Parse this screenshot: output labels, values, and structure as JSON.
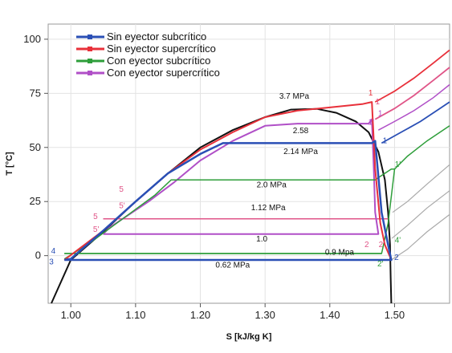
{
  "chart_data": {
    "type": "line",
    "title": "",
    "xlabel": "S [kJ/kg K]",
    "ylabel": "T [°C]",
    "xlim": [
      0.965,
      1.585
    ],
    "ylim": [
      -22,
      107
    ],
    "xticks": [
      {
        "value": 1.0,
        "label": "1.00"
      },
      {
        "value": 1.1,
        "label": "1.10"
      },
      {
        "value": 1.2,
        "label": "1.20"
      },
      {
        "value": 1.3,
        "label": "1.30"
      },
      {
        "value": 1.4,
        "label": "1.40"
      },
      {
        "value": 1.5,
        "label": "1.50"
      }
    ],
    "yticks": [
      {
        "value": 0,
        "label": "0"
      },
      {
        "value": 25,
        "label": "25"
      },
      {
        "value": 50,
        "label": "50"
      },
      {
        "value": 75,
        "label": "75"
      },
      {
        "value": 100,
        "label": "100"
      }
    ],
    "grid": true,
    "legend_position": "top-left",
    "saturation_dome": {
      "color": "#111111",
      "points": [
        [
          0.97,
          -22
        ],
        [
          1.0,
          -2
        ],
        [
          1.05,
          11
        ],
        [
          1.1,
          25
        ],
        [
          1.15,
          38
        ],
        [
          1.2,
          50
        ],
        [
          1.25,
          58
        ],
        [
          1.3,
          64
        ],
        [
          1.34,
          67.5
        ],
        [
          1.38,
          67.8
        ],
        [
          1.41,
          66
        ],
        [
          1.44,
          62
        ],
        [
          1.46,
          57
        ],
        [
          1.475,
          48
        ],
        [
          1.485,
          35
        ],
        [
          1.49,
          20
        ],
        [
          1.493,
          5
        ],
        [
          1.494,
          -10
        ],
        [
          1.495,
          -22
        ]
      ]
    },
    "series": [
      {
        "name": "Sin eyector subcrítico",
        "color": "#2a4fb5",
        "width": 2.5,
        "points": [
          [
            0.99,
            -2
          ],
          [
            1.0,
            -1.5
          ],
          [
            1.05,
            11.5
          ],
          [
            1.1,
            25
          ],
          [
            1.15,
            38
          ],
          [
            1.2,
            47
          ],
          [
            1.235,
            52
          ],
          [
            1.3,
            52
          ],
          [
            1.38,
            52
          ],
          [
            1.465,
            52
          ],
          [
            1.47,
            53
          ],
          [
            1.48,
            20
          ],
          [
            1.49,
            5
          ],
          [
            1.495,
            -2
          ],
          [
            1.4,
            -2
          ],
          [
            1.2,
            -2
          ],
          [
            1.0,
            -2
          ],
          [
            0.99,
            -2
          ]
        ]
      },
      {
        "name": "Sin eyector supercrítico",
        "color": "#e8303a",
        "width": 2,
        "points": [
          [
            0.99,
            -2
          ],
          [
            1.05,
            11.5
          ],
          [
            1.1,
            25
          ],
          [
            1.15,
            38
          ],
          [
            1.2,
            49
          ],
          [
            1.25,
            57
          ],
          [
            1.3,
            64
          ],
          [
            1.35,
            67
          ],
          [
            1.4,
            68.5
          ],
          [
            1.45,
            70
          ],
          [
            1.465,
            71
          ],
          [
            1.47,
            40
          ],
          [
            1.478,
            15
          ],
          [
            1.485,
            5
          ],
          [
            1.495,
            -2
          ],
          [
            0.99,
            -2
          ]
        ]
      },
      {
        "name": "Con eyector subcrítico",
        "color": "#2e9e3a",
        "width": 1.5,
        "points": [
          [
            0.99,
            -1.5
          ],
          [
            1.03,
            6
          ],
          [
            1.08,
            17
          ],
          [
            1.13,
            28
          ],
          [
            1.155,
            35
          ],
          [
            1.25,
            35
          ],
          [
            1.35,
            35
          ],
          [
            1.47,
            35
          ],
          [
            1.48,
            37
          ],
          [
            1.495,
            40
          ],
          [
            1.5,
            40
          ],
          [
            1.49,
            15
          ],
          [
            1.483,
            5
          ],
          [
            1.48,
            1
          ],
          [
            1.3,
            1
          ],
          [
            1.1,
            1
          ],
          [
            0.99,
            1
          ]
        ]
      },
      {
        "name": "Con eyector supercrítico",
        "color": "#b04fc7",
        "width": 2,
        "points": [
          [
            1.05,
            10
          ],
          [
            1.06,
            13
          ],
          [
            1.08,
            17
          ],
          [
            1.12,
            25
          ],
          [
            1.16,
            34
          ],
          [
            1.2,
            44
          ],
          [
            1.25,
            53
          ],
          [
            1.3,
            60
          ],
          [
            1.35,
            61
          ],
          [
            1.4,
            61
          ],
          [
            1.46,
            61
          ],
          [
            1.465,
            63
          ],
          [
            1.468,
            40
          ],
          [
            1.47,
            20
          ],
          [
            1.475,
            10
          ],
          [
            1.3,
            10
          ],
          [
            1.1,
            10
          ],
          [
            1.05,
            10
          ]
        ]
      }
    ],
    "extra_lines": [
      {
        "color": "#e05588",
        "width": 1.5,
        "points": [
          [
            1.05,
            17
          ],
          [
            1.2,
            17
          ],
          [
            1.4,
            17
          ],
          [
            1.49,
            17
          ]
        ]
      },
      {
        "color": "#e05588",
        "width": 1.5,
        "points": [
          [
            1.05,
            10
          ],
          [
            1.2,
            10
          ],
          [
            1.4,
            10
          ],
          [
            1.47,
            10
          ]
        ]
      },
      {
        "color": "#2e9e3a",
        "width": 1.5,
        "points": [
          [
            0.99,
            1
          ],
          [
            1.2,
            1
          ],
          [
            1.4,
            1
          ],
          [
            1.48,
            1
          ]
        ]
      }
    ],
    "isobars": [
      {
        "color": "#e8303a",
        "width": 1.8,
        "points": [
          [
            1.47,
            71
          ],
          [
            1.5,
            76
          ],
          [
            1.53,
            82
          ],
          [
            1.56,
            89
          ],
          [
            1.585,
            95
          ]
        ]
      },
      {
        "color": "#e05588",
        "width": 1.8,
        "points": [
          [
            1.47,
            63
          ],
          [
            1.5,
            68
          ],
          [
            1.53,
            74
          ],
          [
            1.56,
            81
          ],
          [
            1.585,
            87
          ]
        ]
      },
      {
        "color": "#b04fc7",
        "width": 1.5,
        "points": [
          [
            1.475,
            58
          ],
          [
            1.5,
            62
          ],
          [
            1.53,
            67
          ],
          [
            1.56,
            73
          ],
          [
            1.585,
            79
          ]
        ]
      },
      {
        "color": "#2a4fb5",
        "width": 1.8,
        "points": [
          [
            1.48,
            52
          ],
          [
            1.51,
            57
          ],
          [
            1.54,
            62
          ],
          [
            1.57,
            68
          ],
          [
            1.585,
            71
          ]
        ]
      },
      {
        "color": "#2e9e3a",
        "width": 1.5,
        "points": [
          [
            1.5,
            40
          ],
          [
            1.52,
            46
          ],
          [
            1.55,
            53
          ],
          [
            1.585,
            60
          ]
        ]
      },
      {
        "color": "#aaaaaa",
        "width": 1.2,
        "points": [
          [
            1.497,
            20
          ],
          [
            1.52,
            25
          ],
          [
            1.55,
            33
          ],
          [
            1.585,
            42
          ]
        ]
      },
      {
        "color": "#aaaaaa",
        "width": 1.2,
        "points": [
          [
            1.496,
            8
          ],
          [
            1.52,
            14
          ],
          [
            1.55,
            22
          ],
          [
            1.585,
            30
          ]
        ]
      },
      {
        "color": "#aaaaaa",
        "width": 1.2,
        "points": [
          [
            1.495,
            -2
          ],
          [
            1.52,
            3
          ],
          [
            1.55,
            11
          ],
          [
            1.585,
            19
          ]
        ]
      }
    ],
    "annotations": [
      {
        "text": "3.7 MPa",
        "x": 1.345,
        "y": 72.5
      },
      {
        "text": "2.58",
        "x": 1.355,
        "y": 56.5
      },
      {
        "text": "2.14 MPa",
        "x": 1.355,
        "y": 47
      },
      {
        "text": "2.0 MPa",
        "x": 1.31,
        "y": 31.5
      },
      {
        "text": "1.12 MPa",
        "x": 1.305,
        "y": 21
      },
      {
        "text": "1.0",
        "x": 1.295,
        "y": 6.5
      },
      {
        "text": "0.9 Mpa",
        "x": 1.415,
        "y": 0.5
      },
      {
        "text": "0.62 MPa",
        "x": 1.25,
        "y": -5.5
      }
    ],
    "state_points": [
      {
        "text": "1",
        "x": 1.463,
        "y": 74,
        "color": "#e8303a"
      },
      {
        "text": "1'",
        "x": 1.475,
        "y": 70,
        "color": "#e05588"
      },
      {
        "text": "1",
        "x": 1.478,
        "y": 64.5,
        "color": "#b04fc7"
      },
      {
        "text": "1'",
        "x": 1.464,
        "y": 60.5,
        "color": "#b04fc7"
      },
      {
        "text": "1",
        "x": 1.485,
        "y": 52,
        "color": "#2a4fb5"
      },
      {
        "text": "1'",
        "x": 1.505,
        "y": 41,
        "color": "#2e9e3a"
      },
      {
        "text": "5",
        "x": 1.078,
        "y": 29.5,
        "color": "#e05588"
      },
      {
        "text": "5'",
        "x": 1.079,
        "y": 22,
        "color": "#e05588"
      },
      {
        "text": "5",
        "x": 1.038,
        "y": 17,
        "color": "#e05588"
      },
      {
        "text": "5'",
        "x": 1.039,
        "y": 11,
        "color": "#e05588"
      },
      {
        "text": "4",
        "x": 0.973,
        "y": 1,
        "color": "#2a4fb5"
      },
      {
        "text": "3",
        "x": 0.97,
        "y": -4,
        "color": "#2a4fb5"
      },
      {
        "text": "2",
        "x": 1.457,
        "y": 4,
        "color": "#e05588"
      },
      {
        "text": "2'",
        "x": 1.48,
        "y": 4,
        "color": "#e05588"
      },
      {
        "text": "2",
        "x": 1.503,
        "y": -2,
        "color": "#2a4fb5"
      },
      {
        "text": "2'",
        "x": 1.478,
        "y": -5,
        "color": "#2e9e3a"
      },
      {
        "text": "4'",
        "x": 1.505,
        "y": 6,
        "color": "#2e9e3a"
      }
    ]
  }
}
